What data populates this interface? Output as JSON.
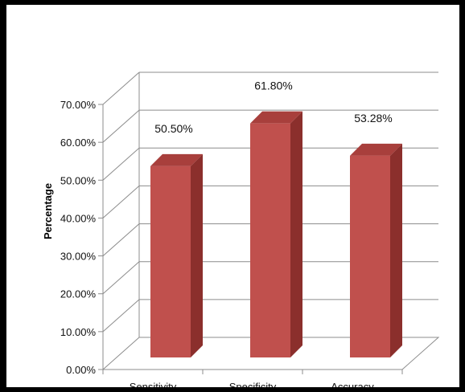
{
  "chart_data": {
    "type": "bar",
    "title": "",
    "xlabel": "",
    "ylabel": "Percentage",
    "categories": [
      "Sensitivity",
      "Specificity",
      "Accuracy"
    ],
    "values": [
      50.5,
      61.8,
      53.28
    ],
    "data_labels": [
      "50.50%",
      "61.80%",
      "53.28%"
    ],
    "ylim": [
      0,
      70
    ],
    "yticks": [
      0,
      10,
      20,
      30,
      40,
      50,
      60,
      70
    ],
    "ytick_labels": [
      "0.00%",
      "10.00%",
      "20.00%",
      "30.00%",
      "40.00%",
      "50.00%",
      "60.00%",
      "70.00%"
    ],
    "grid": true,
    "legend": "none",
    "style": "3d-column",
    "colors": {
      "bar_front": "#c0504d",
      "bar_side": "#8b2f2c",
      "bar_top": "#a83f3c",
      "grid": "#8c8c8c",
      "frame": "#000000"
    }
  }
}
